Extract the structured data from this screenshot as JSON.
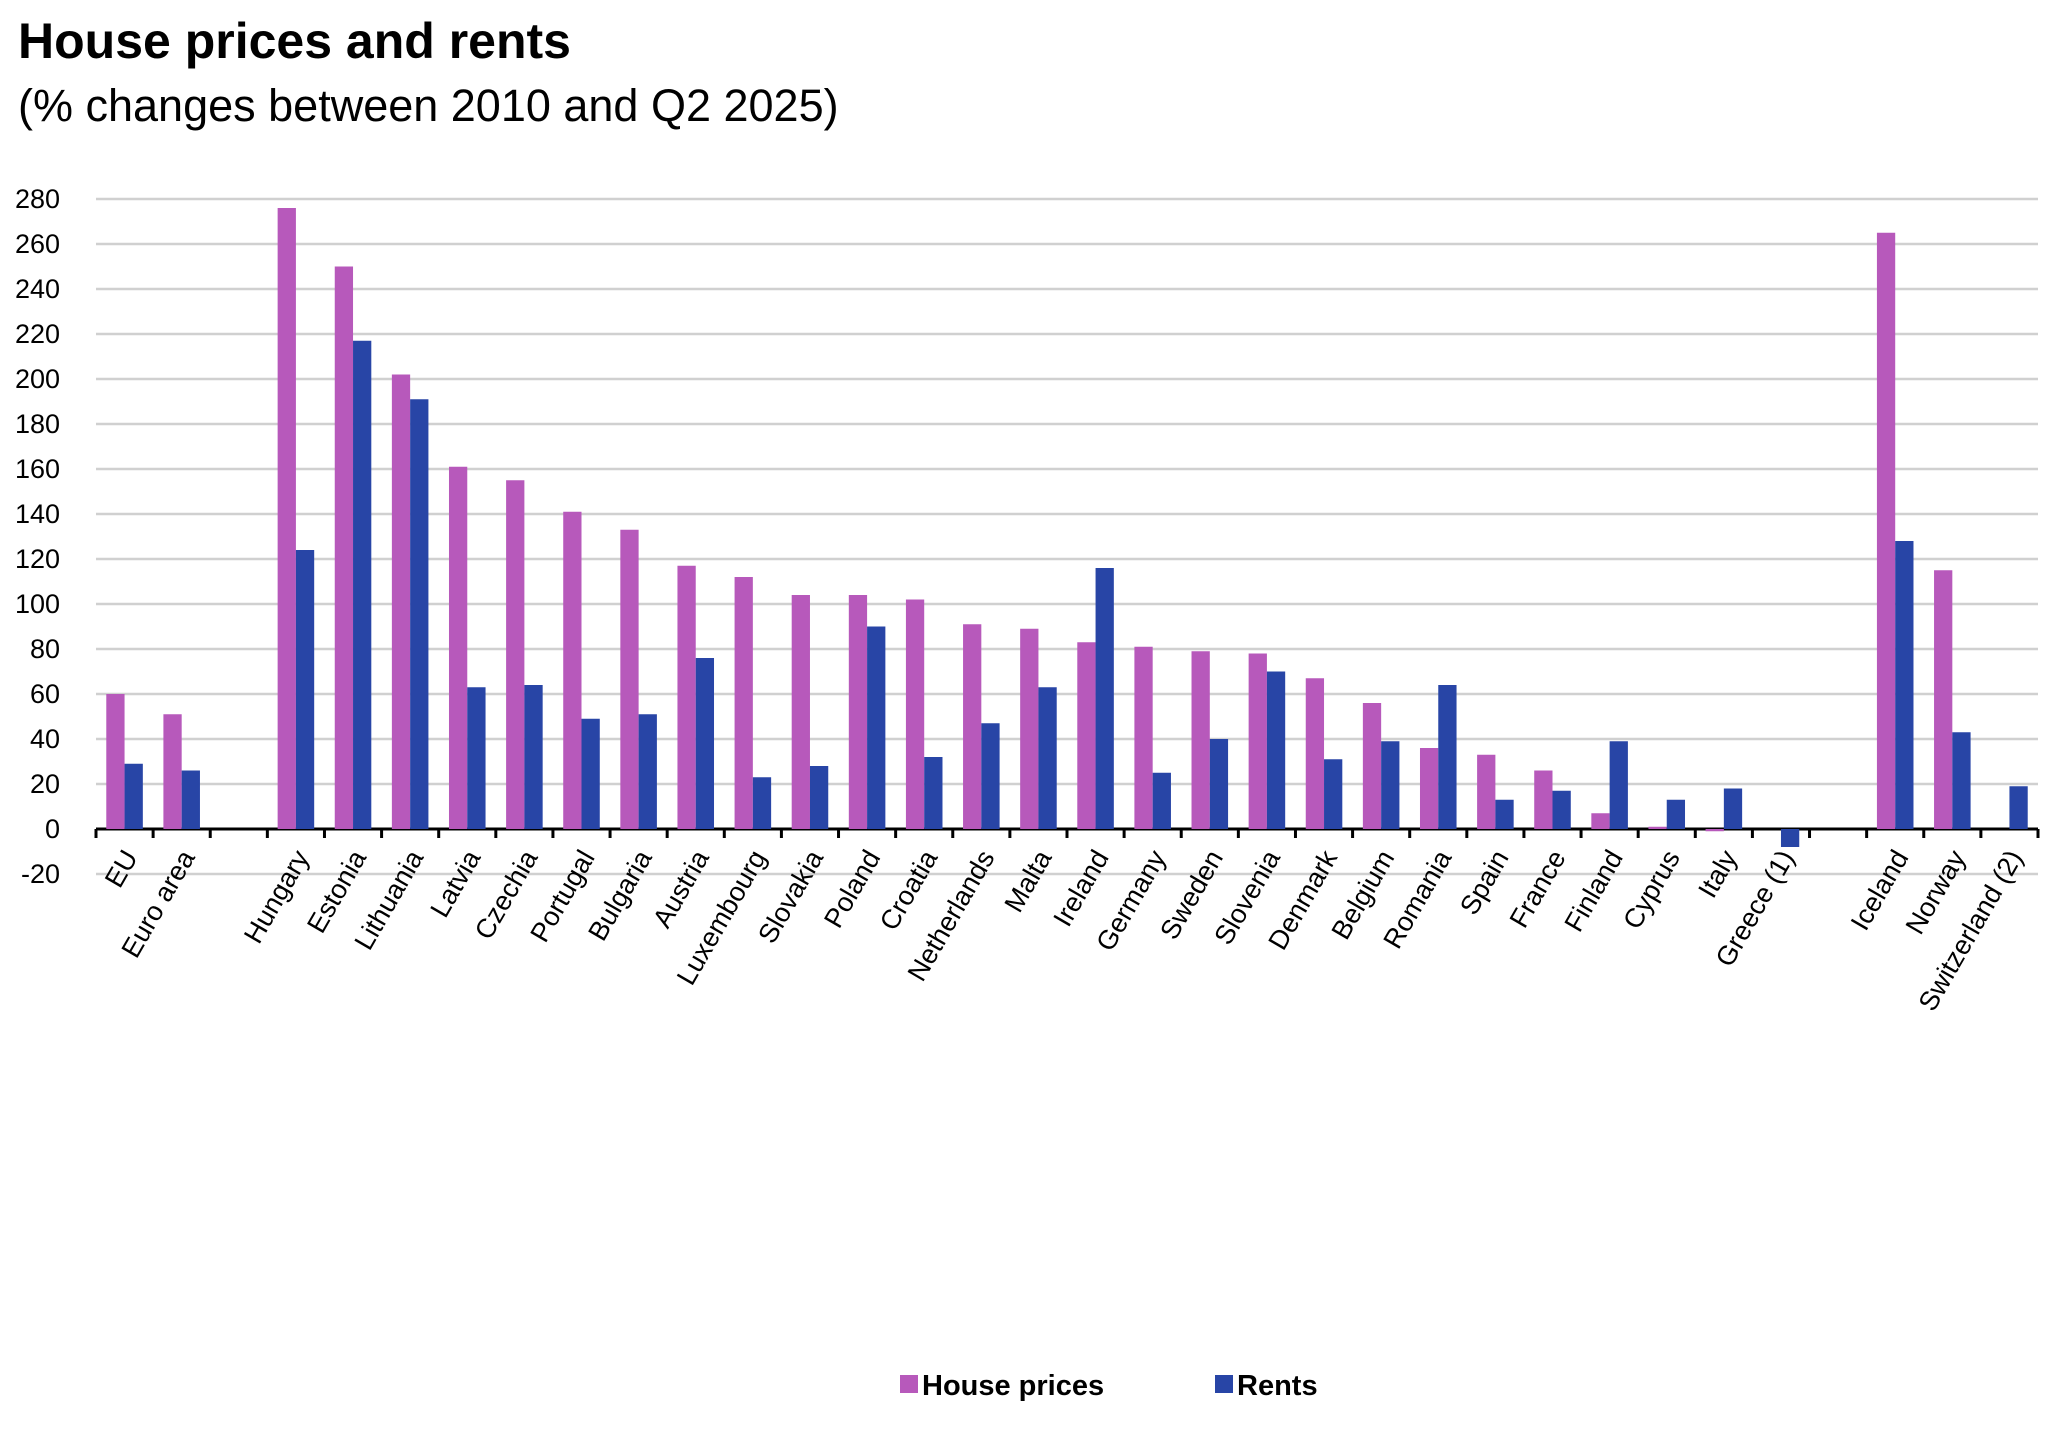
{
  "chart_data": {
    "type": "bar",
    "title": "House prices and rents",
    "subtitle": "(% changes between 2010 and Q2 2025)",
    "xlabel": "",
    "ylabel": "",
    "ylim": [
      -20,
      280
    ],
    "yticks": [
      -20,
      0,
      20,
      40,
      60,
      80,
      100,
      120,
      140,
      160,
      180,
      200,
      220,
      240,
      260,
      280
    ],
    "grid": true,
    "legend_position": "bottom-center",
    "categories": [
      "EU",
      "Euro area",
      "",
      "Hungary",
      "Estonia",
      "Lithuania",
      "Latvia",
      "Czechia",
      "Portugal",
      "Bulgaria",
      "Austria",
      "Luxembourg",
      "Slovakia",
      "Poland",
      "Croatia",
      "Netherlands",
      "Malta",
      "Ireland",
      "Germany",
      "Sweden",
      "Slovenia",
      "Denmark",
      "Belgium",
      "Romania",
      "Spain",
      "France",
      "Finland",
      "Cyprus",
      "Italy",
      "Greece (1)",
      "",
      "Iceland",
      "Norway",
      "Switzerland (2)"
    ],
    "series": [
      {
        "name": "House prices",
        "color": "#b759bb",
        "values": [
          60,
          51,
          null,
          276,
          250,
          202,
          161,
          155,
          141,
          133,
          117,
          112,
          104,
          104,
          102,
          91,
          89,
          83,
          81,
          79,
          78,
          67,
          56,
          36,
          33,
          26,
          7,
          1,
          -1,
          null,
          null,
          265,
          115,
          null
        ]
      },
      {
        "name": "Rents",
        "color": "#2845a6",
        "values": [
          29,
          26,
          null,
          124,
          217,
          191,
          63,
          64,
          49,
          51,
          76,
          23,
          28,
          90,
          32,
          47,
          63,
          116,
          25,
          40,
          70,
          31,
          39,
          64,
          13,
          17,
          39,
          13,
          18,
          -8,
          null,
          128,
          43,
          19
        ]
      }
    ]
  }
}
